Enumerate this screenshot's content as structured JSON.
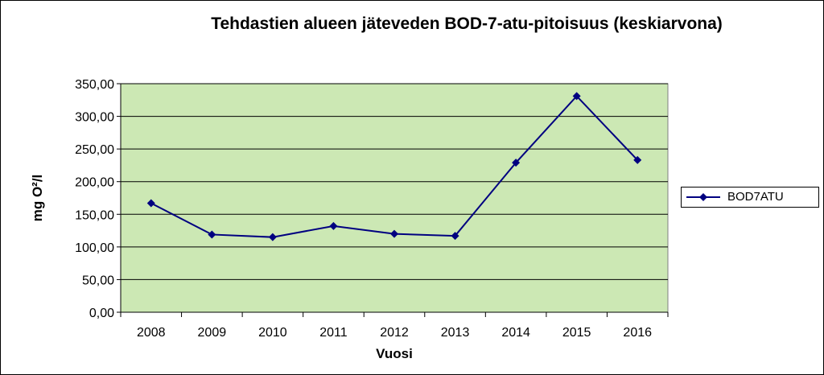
{
  "chart_data": {
    "type": "line",
    "title": "Tehdastien alueen jäteveden BOD-7-atu-pitoisuus  (keskiarvona)",
    "xlabel": "Vuosi",
    "ylabel": "mg O²/l",
    "categories": [
      "2008",
      "2009",
      "2010",
      "2011",
      "2012",
      "2013",
      "2014",
      "2015",
      "2016"
    ],
    "series": [
      {
        "name": "BOD7ATU",
        "values": [
          167,
          119,
          115,
          132,
          120,
          117,
          229,
          331,
          233
        ]
      }
    ],
    "ylim": [
      0,
      350
    ],
    "yticks": [
      "0,00",
      "50,00",
      "100,00",
      "150,00",
      "200,00",
      "250,00",
      "300,00",
      "350,00"
    ],
    "grid": true,
    "legend_position": "right",
    "colors": {
      "plot_background": "#cce8b4",
      "series": "#000080",
      "gridline": "#000000"
    }
  }
}
